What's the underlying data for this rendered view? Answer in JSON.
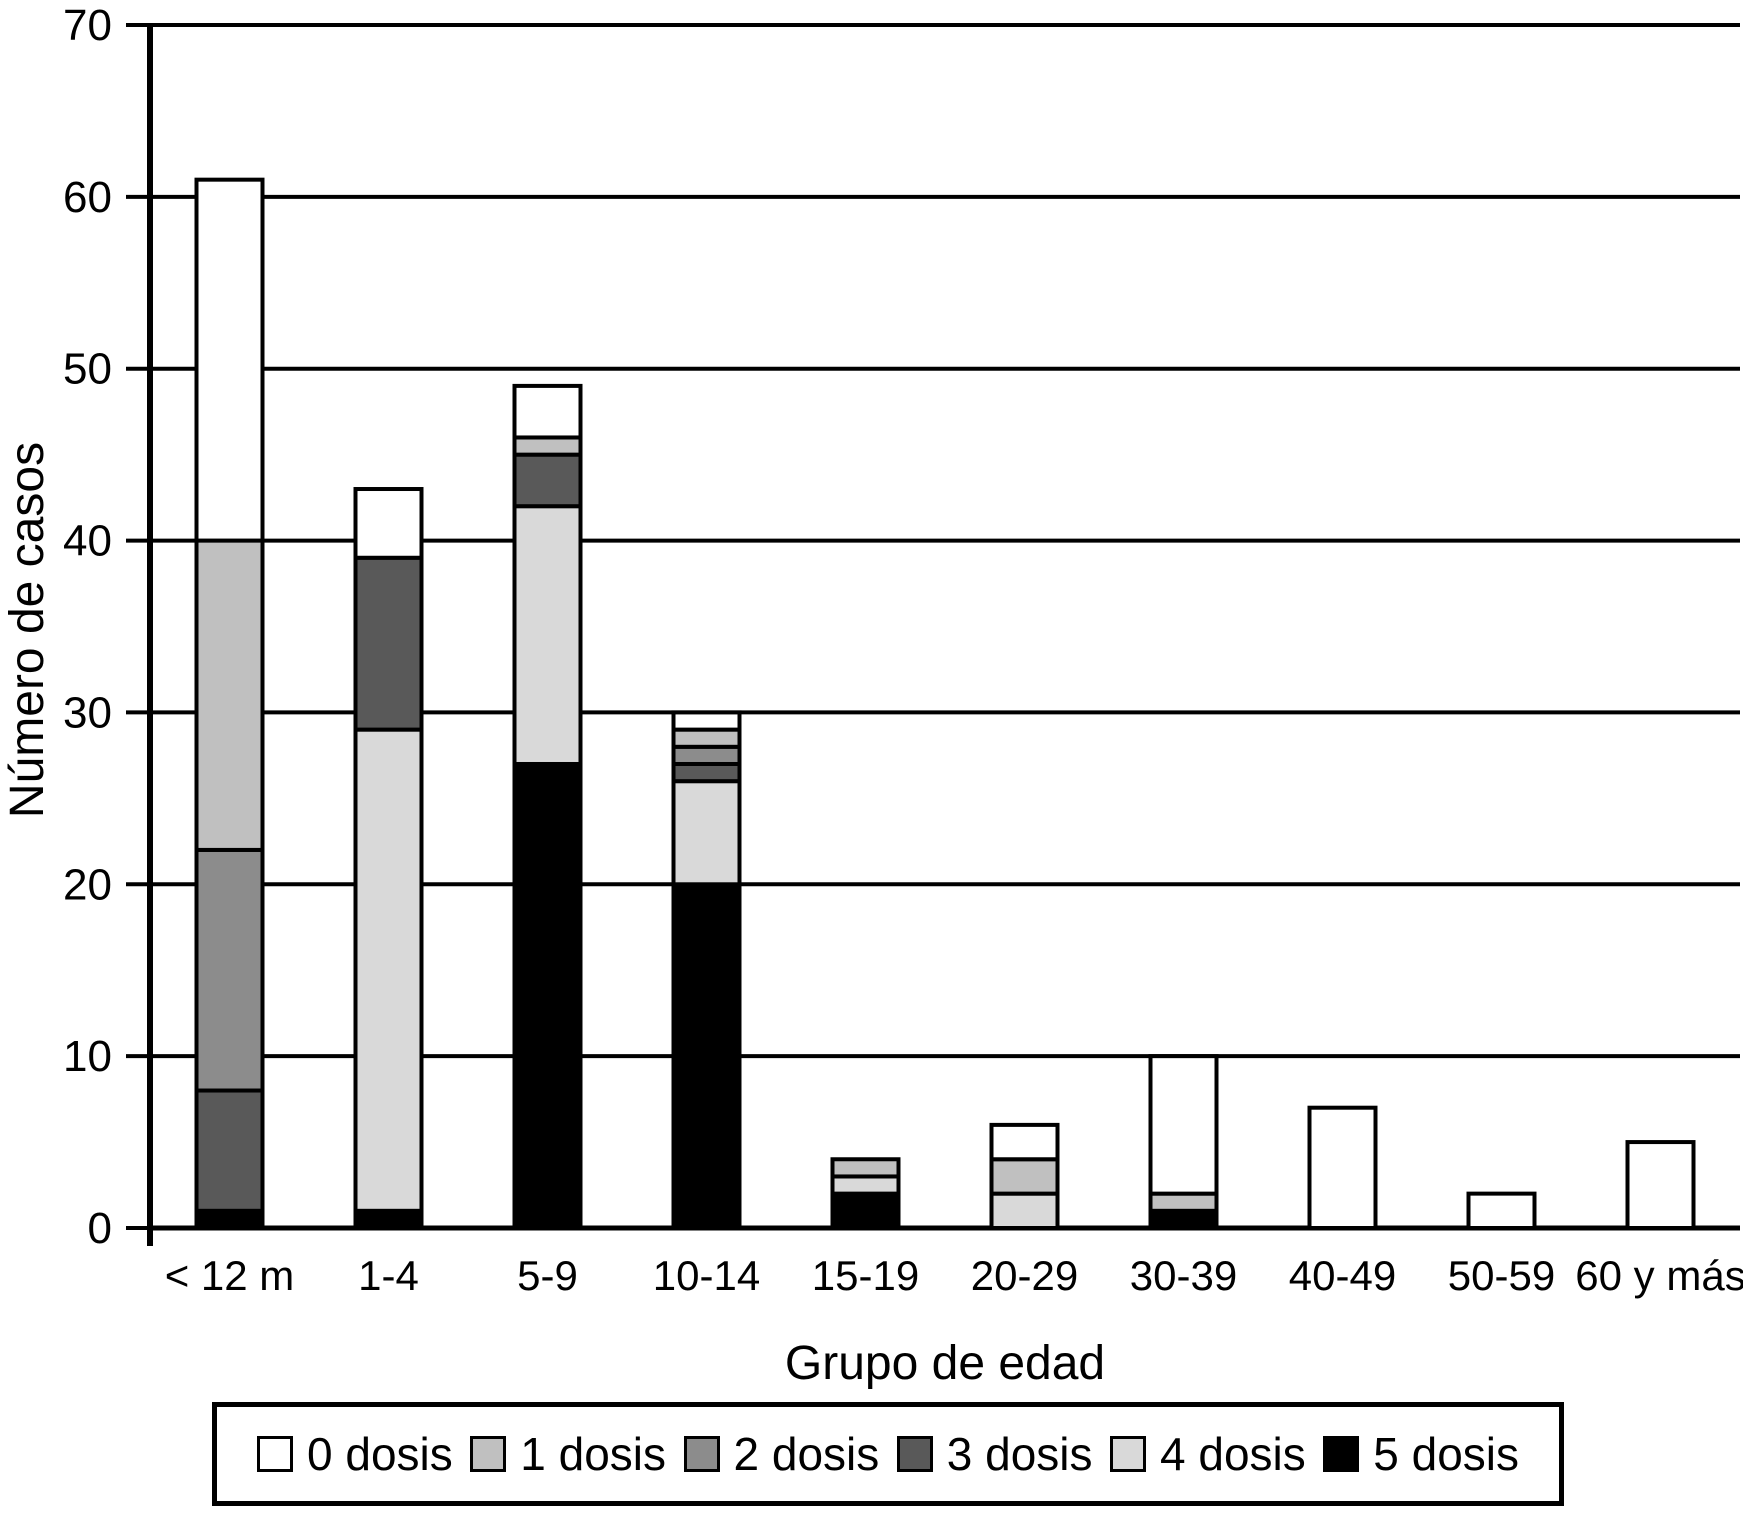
{
  "chart_data": {
    "type": "bar",
    "stacked": true,
    "title": "",
    "xlabel": "Grupo de edad",
    "ylabel": "Número de casos",
    "ylim": [
      0,
      70
    ],
    "ytick_step": 10,
    "yticks": [
      0,
      10,
      20,
      30,
      40,
      50,
      60,
      70
    ],
    "grid": "horizontal",
    "legend_position": "bottom",
    "categories": [
      "< 12 m",
      "1-4",
      "5-9",
      "10-14",
      "15-19",
      "20-29",
      "30-39",
      "40-49",
      "50-59",
      "60 y más"
    ],
    "series": [
      {
        "name": "5 dosis",
        "color": "#000000",
        "values": [
          1,
          1,
          27,
          20,
          2,
          0,
          1,
          0,
          0,
          0
        ]
      },
      {
        "name": "4 dosis",
        "color": "#d9d9d9",
        "values": [
          0,
          28,
          15,
          6,
          1,
          2,
          0,
          0,
          0,
          0
        ]
      },
      {
        "name": "3 dosis",
        "color": "#595959",
        "values": [
          7,
          10,
          3,
          1,
          0,
          0,
          0,
          0,
          0,
          0
        ]
      },
      {
        "name": "2 dosis",
        "color": "#8c8c8c",
        "values": [
          14,
          0,
          0,
          1,
          0,
          0,
          0,
          0,
          0,
          0
        ]
      },
      {
        "name": "1 dosis",
        "color": "#c0c0c0",
        "values": [
          18,
          0,
          1,
          1,
          1,
          2,
          1,
          0,
          0,
          0
        ]
      },
      {
        "name": "0 dosis",
        "color": "#ffffff",
        "values": [
          21,
          4,
          3,
          1,
          0,
          2,
          8,
          7,
          2,
          5
        ]
      }
    ]
  },
  "legend": {
    "items": [
      {
        "label": "0 dosis",
        "color": "#ffffff"
      },
      {
        "label": "1 dosis",
        "color": "#c0c0c0"
      },
      {
        "label": "2 dosis",
        "color": "#8c8c8c"
      },
      {
        "label": "3 dosis",
        "color": "#595959"
      },
      {
        "label": "4 dosis",
        "color": "#d9d9d9"
      },
      {
        "label": "5 dosis",
        "color": "#000000"
      }
    ]
  }
}
